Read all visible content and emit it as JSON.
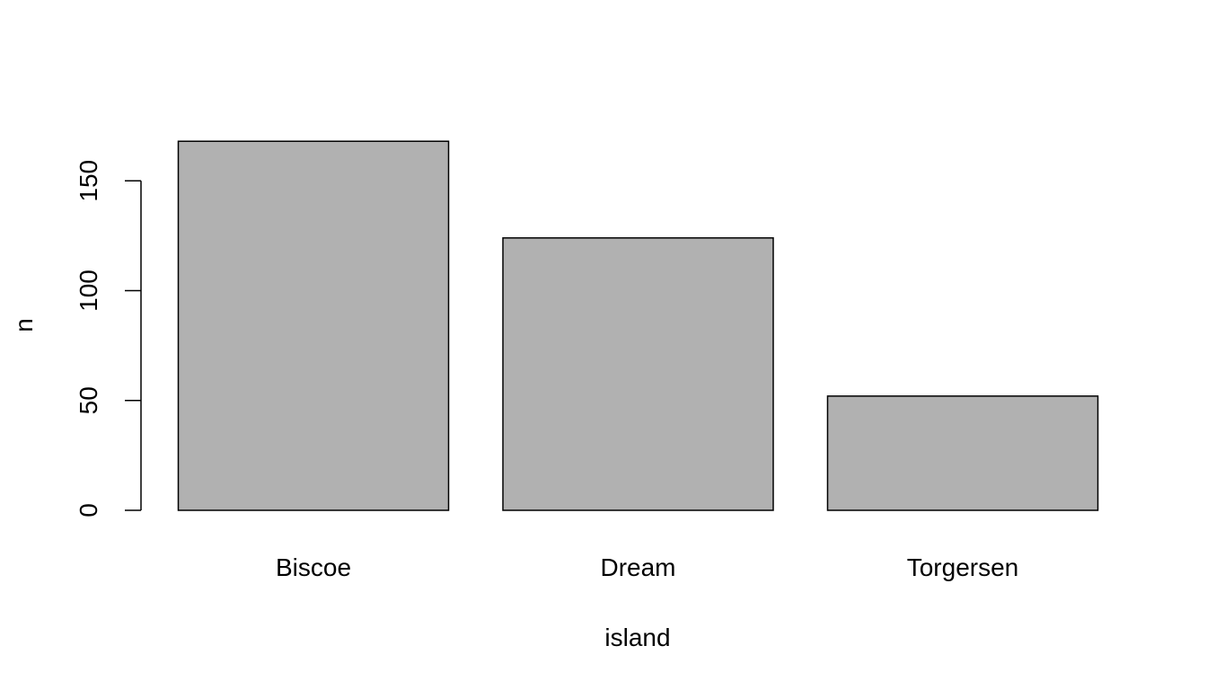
{
  "chart_data": {
    "type": "bar",
    "categories": [
      "Biscoe",
      "Dream",
      "Torgersen"
    ],
    "values": [
      168,
      124,
      52
    ],
    "title": "",
    "xlabel": "island",
    "ylabel": "n",
    "ylim": [
      0,
      168
    ],
    "yticks": [
      0,
      50,
      100,
      150
    ],
    "grid": false,
    "bar_color": "#b1b1b1",
    "border_color": "#000000"
  }
}
